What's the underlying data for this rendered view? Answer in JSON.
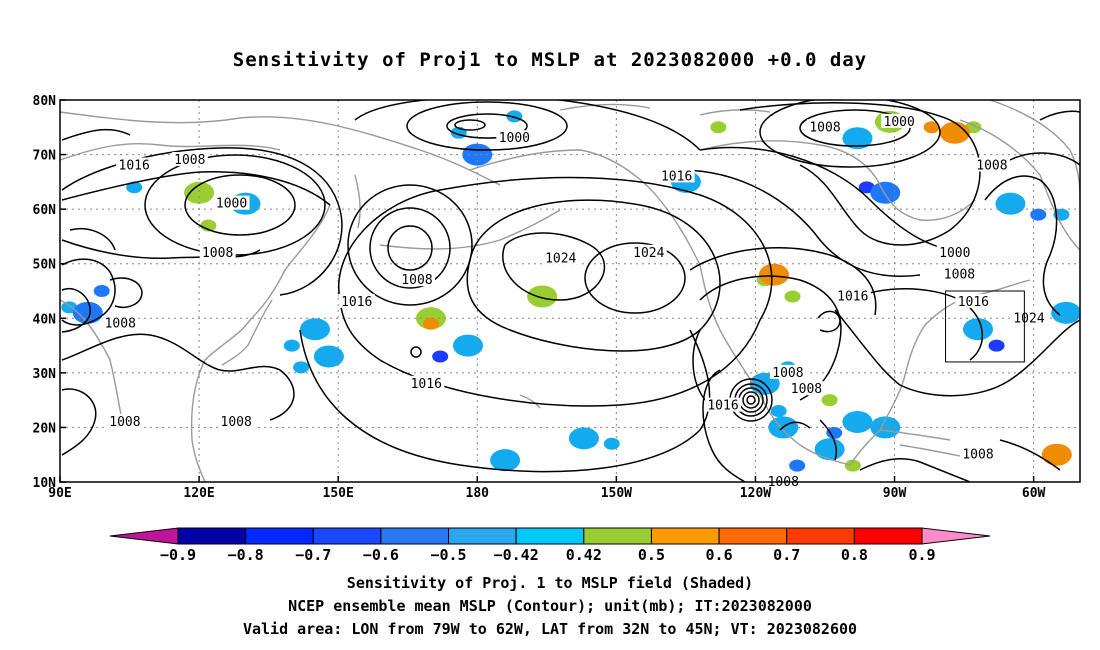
{
  "chart_data": {
    "type": "heatmap",
    "title": "Sensitivity of Proj1 to MSLP at 2023082000 +0.0 day",
    "x_ticks": [
      "90E",
      "120E",
      "150E",
      "180",
      "150W",
      "120W",
      "90W",
      "60W"
    ],
    "y_ticks": [
      "80N",
      "70N",
      "60N",
      "50N",
      "40N",
      "30N",
      "20N",
      "10N"
    ],
    "xlim": [
      90,
      310
    ],
    "ylim": [
      10,
      80
    ],
    "grid": true,
    "contour_unit": "mb",
    "contour_labels": [
      {
        "text": "1000",
        "lon": 188,
        "lat": 73
      },
      {
        "text": "1000",
        "lon": 127,
        "lat": 61
      },
      {
        "text": "1000",
        "lon": 271,
        "lat": 76
      },
      {
        "text": "1000",
        "lon": 283,
        "lat": 52
      },
      {
        "text": "1008",
        "lon": 255,
        "lat": 75
      },
      {
        "text": "1008",
        "lon": 118,
        "lat": 69
      },
      {
        "text": "1008",
        "lon": 124,
        "lat": 52
      },
      {
        "text": "1008",
        "lon": 167,
        "lat": 47
      },
      {
        "text": "1008",
        "lon": 103,
        "lat": 39
      },
      {
        "text": "1008",
        "lon": 104,
        "lat": 21
      },
      {
        "text": "1008",
        "lon": 128,
        "lat": 21
      },
      {
        "text": "1008",
        "lon": 247,
        "lat": 30
      },
      {
        "text": "1008",
        "lon": 251,
        "lat": 27
      },
      {
        "text": "1008",
        "lon": 246,
        "lat": 10
      },
      {
        "text": "1008",
        "lon": 291,
        "lat": 68
      },
      {
        "text": "1008",
        "lon": 284,
        "lat": 48
      },
      {
        "text": "1008",
        "lon": 288,
        "lat": 15
      },
      {
        "text": "1016",
        "lon": 106,
        "lat": 68
      },
      {
        "text": "1016",
        "lon": 223,
        "lat": 66
      },
      {
        "text": "1016",
        "lon": 154,
        "lat": 43
      },
      {
        "text": "1016",
        "lon": 169,
        "lat": 28
      },
      {
        "text": "1016",
        "lon": 233,
        "lat": 24
      },
      {
        "text": "1016",
        "lon": 261,
        "lat": 44
      },
      {
        "text": "1016",
        "lon": 287,
        "lat": 43
      },
      {
        "text": "1024",
        "lon": 198,
        "lat": 51
      },
      {
        "text": "1024",
        "lon": 217,
        "lat": 52
      },
      {
        "text": "1024",
        "lon": 299,
        "lat": 40
      }
    ],
    "shaded_regions": [
      {
        "lon": 176,
        "lat": 74,
        "level": -0.5
      },
      {
        "lon": 180,
        "lat": 70,
        "level": -0.6
      },
      {
        "lon": 188,
        "lat": 77,
        "level": -0.5
      },
      {
        "lon": 262,
        "lat": 73,
        "level": -0.5
      },
      {
        "lon": 264,
        "lat": 64,
        "level": -0.7
      },
      {
        "lon": 268,
        "lat": 63,
        "level": -0.6
      },
      {
        "lon": 278,
        "lat": 75,
        "level": 0.6
      },
      {
        "lon": 269,
        "lat": 76,
        "level": 0.5
      },
      {
        "lon": 287,
        "lat": 75,
        "level": 0.5
      },
      {
        "lon": 283,
        "lat": 74,
        "level": 0.6
      },
      {
        "lon": 301,
        "lat": 59,
        "level": -0.6
      },
      {
        "lon": 295,
        "lat": 61,
        "level": -0.5
      },
      {
        "lon": 306,
        "lat": 59,
        "level": -0.5
      },
      {
        "lon": 288,
        "lat": 38,
        "level": -0.5
      },
      {
        "lon": 292,
        "lat": 35,
        "level": -0.7
      },
      {
        "lon": 307,
        "lat": 41,
        "level": -0.5
      },
      {
        "lon": 172,
        "lat": 33,
        "level": -0.7
      },
      {
        "lon": 178,
        "lat": 35,
        "level": -0.5
      },
      {
        "lon": 140,
        "lat": 35,
        "level": -0.5
      },
      {
        "lon": 145,
        "lat": 38,
        "level": -0.5
      },
      {
        "lon": 142,
        "lat": 31,
        "level": -0.5
      },
      {
        "lon": 148,
        "lat": 33,
        "level": -0.5
      },
      {
        "lon": 92,
        "lat": 42,
        "level": -0.5
      },
      {
        "lon": 96,
        "lat": 41,
        "level": -0.6
      },
      {
        "lon": 99,
        "lat": 45,
        "level": -0.6
      },
      {
        "lon": 120,
        "lat": 63,
        "level": 0.5
      },
      {
        "lon": 122,
        "lat": 57,
        "level": 0.5
      },
      {
        "lon": 130,
        "lat": 61,
        "level": -0.5
      },
      {
        "lon": 106,
        "lat": 64,
        "level": -0.5
      },
      {
        "lon": 170,
        "lat": 40,
        "level": 0.5
      },
      {
        "lon": 170,
        "lat": 39,
        "level": 0.6
      },
      {
        "lon": 194,
        "lat": 44,
        "level": 0.5
      },
      {
        "lon": 232,
        "lat": 75,
        "level": 0.5
      },
      {
        "lon": 225,
        "lat": 65,
        "level": -0.5
      },
      {
        "lon": 242,
        "lat": 47,
        "level": 0.5
      },
      {
        "lon": 244,
        "lat": 48,
        "level": 0.6
      },
      {
        "lon": 248,
        "lat": 44,
        "level": 0.5
      },
      {
        "lon": 242,
        "lat": 28,
        "level": -0.5
      },
      {
        "lon": 245,
        "lat": 23,
        "level": -0.5
      },
      {
        "lon": 246,
        "lat": 20,
        "level": -0.5
      },
      {
        "lon": 257,
        "lat": 19,
        "level": -0.6
      },
      {
        "lon": 262,
        "lat": 21,
        "level": -0.5
      },
      {
        "lon": 256,
        "lat": 25,
        "level": 0.5
      },
      {
        "lon": 203,
        "lat": 18,
        "level": -0.5
      },
      {
        "lon": 209,
        "lat": 17,
        "level": -0.5
      },
      {
        "lon": 186,
        "lat": 14,
        "level": -0.5
      },
      {
        "lon": 249,
        "lat": 13,
        "level": -0.6
      },
      {
        "lon": 256,
        "lat": 16,
        "level": -0.5
      },
      {
        "lon": 261,
        "lat": 13,
        "level": 0.5
      },
      {
        "lon": 305,
        "lat": 15,
        "level": 0.6
      },
      {
        "lon": 247,
        "lat": 31,
        "level": -0.5
      },
      {
        "lon": 268,
        "lat": 20,
        "level": -0.5
      }
    ],
    "colorbar": {
      "levels": [
        "-0.9",
        "-0.8",
        "-0.7",
        "-0.6",
        "-0.5",
        "-0.42",
        "0.42",
        "0.5",
        "0.6",
        "0.7",
        "0.8",
        "0.9"
      ],
      "colors": [
        "#c0149a",
        "#0000a8",
        "#0028ff",
        "#1a46ff",
        "#2a78f0",
        "#2aa6f0",
        "#00c8ff",
        "#ffffff",
        "#9acd32",
        "#ff9900",
        "#ff6a00",
        "#ff3c00",
        "#ff0000",
        "#ff8cc8"
      ]
    },
    "valid_box": {
      "lon_min": 281,
      "lon_max": 298,
      "lat_min": 32,
      "lat_max": 45
    }
  },
  "captions": [
    "Sensitivity of Proj. 1 to MSLP field (Shaded)",
    "NCEP ensemble mean MSLP (Contour); unit(mb); IT:2023082000",
    "Valid area: LON from 79W to 62W, LAT from 32N to 45N; VT: 2023082600"
  ],
  "shade_palette": {
    "-0.7": "#1e3cff",
    "-0.6": "#1e78ff",
    "-0.5": "#14aaf0",
    "0.5": "#9acd32",
    "0.6": "#f08c00"
  }
}
